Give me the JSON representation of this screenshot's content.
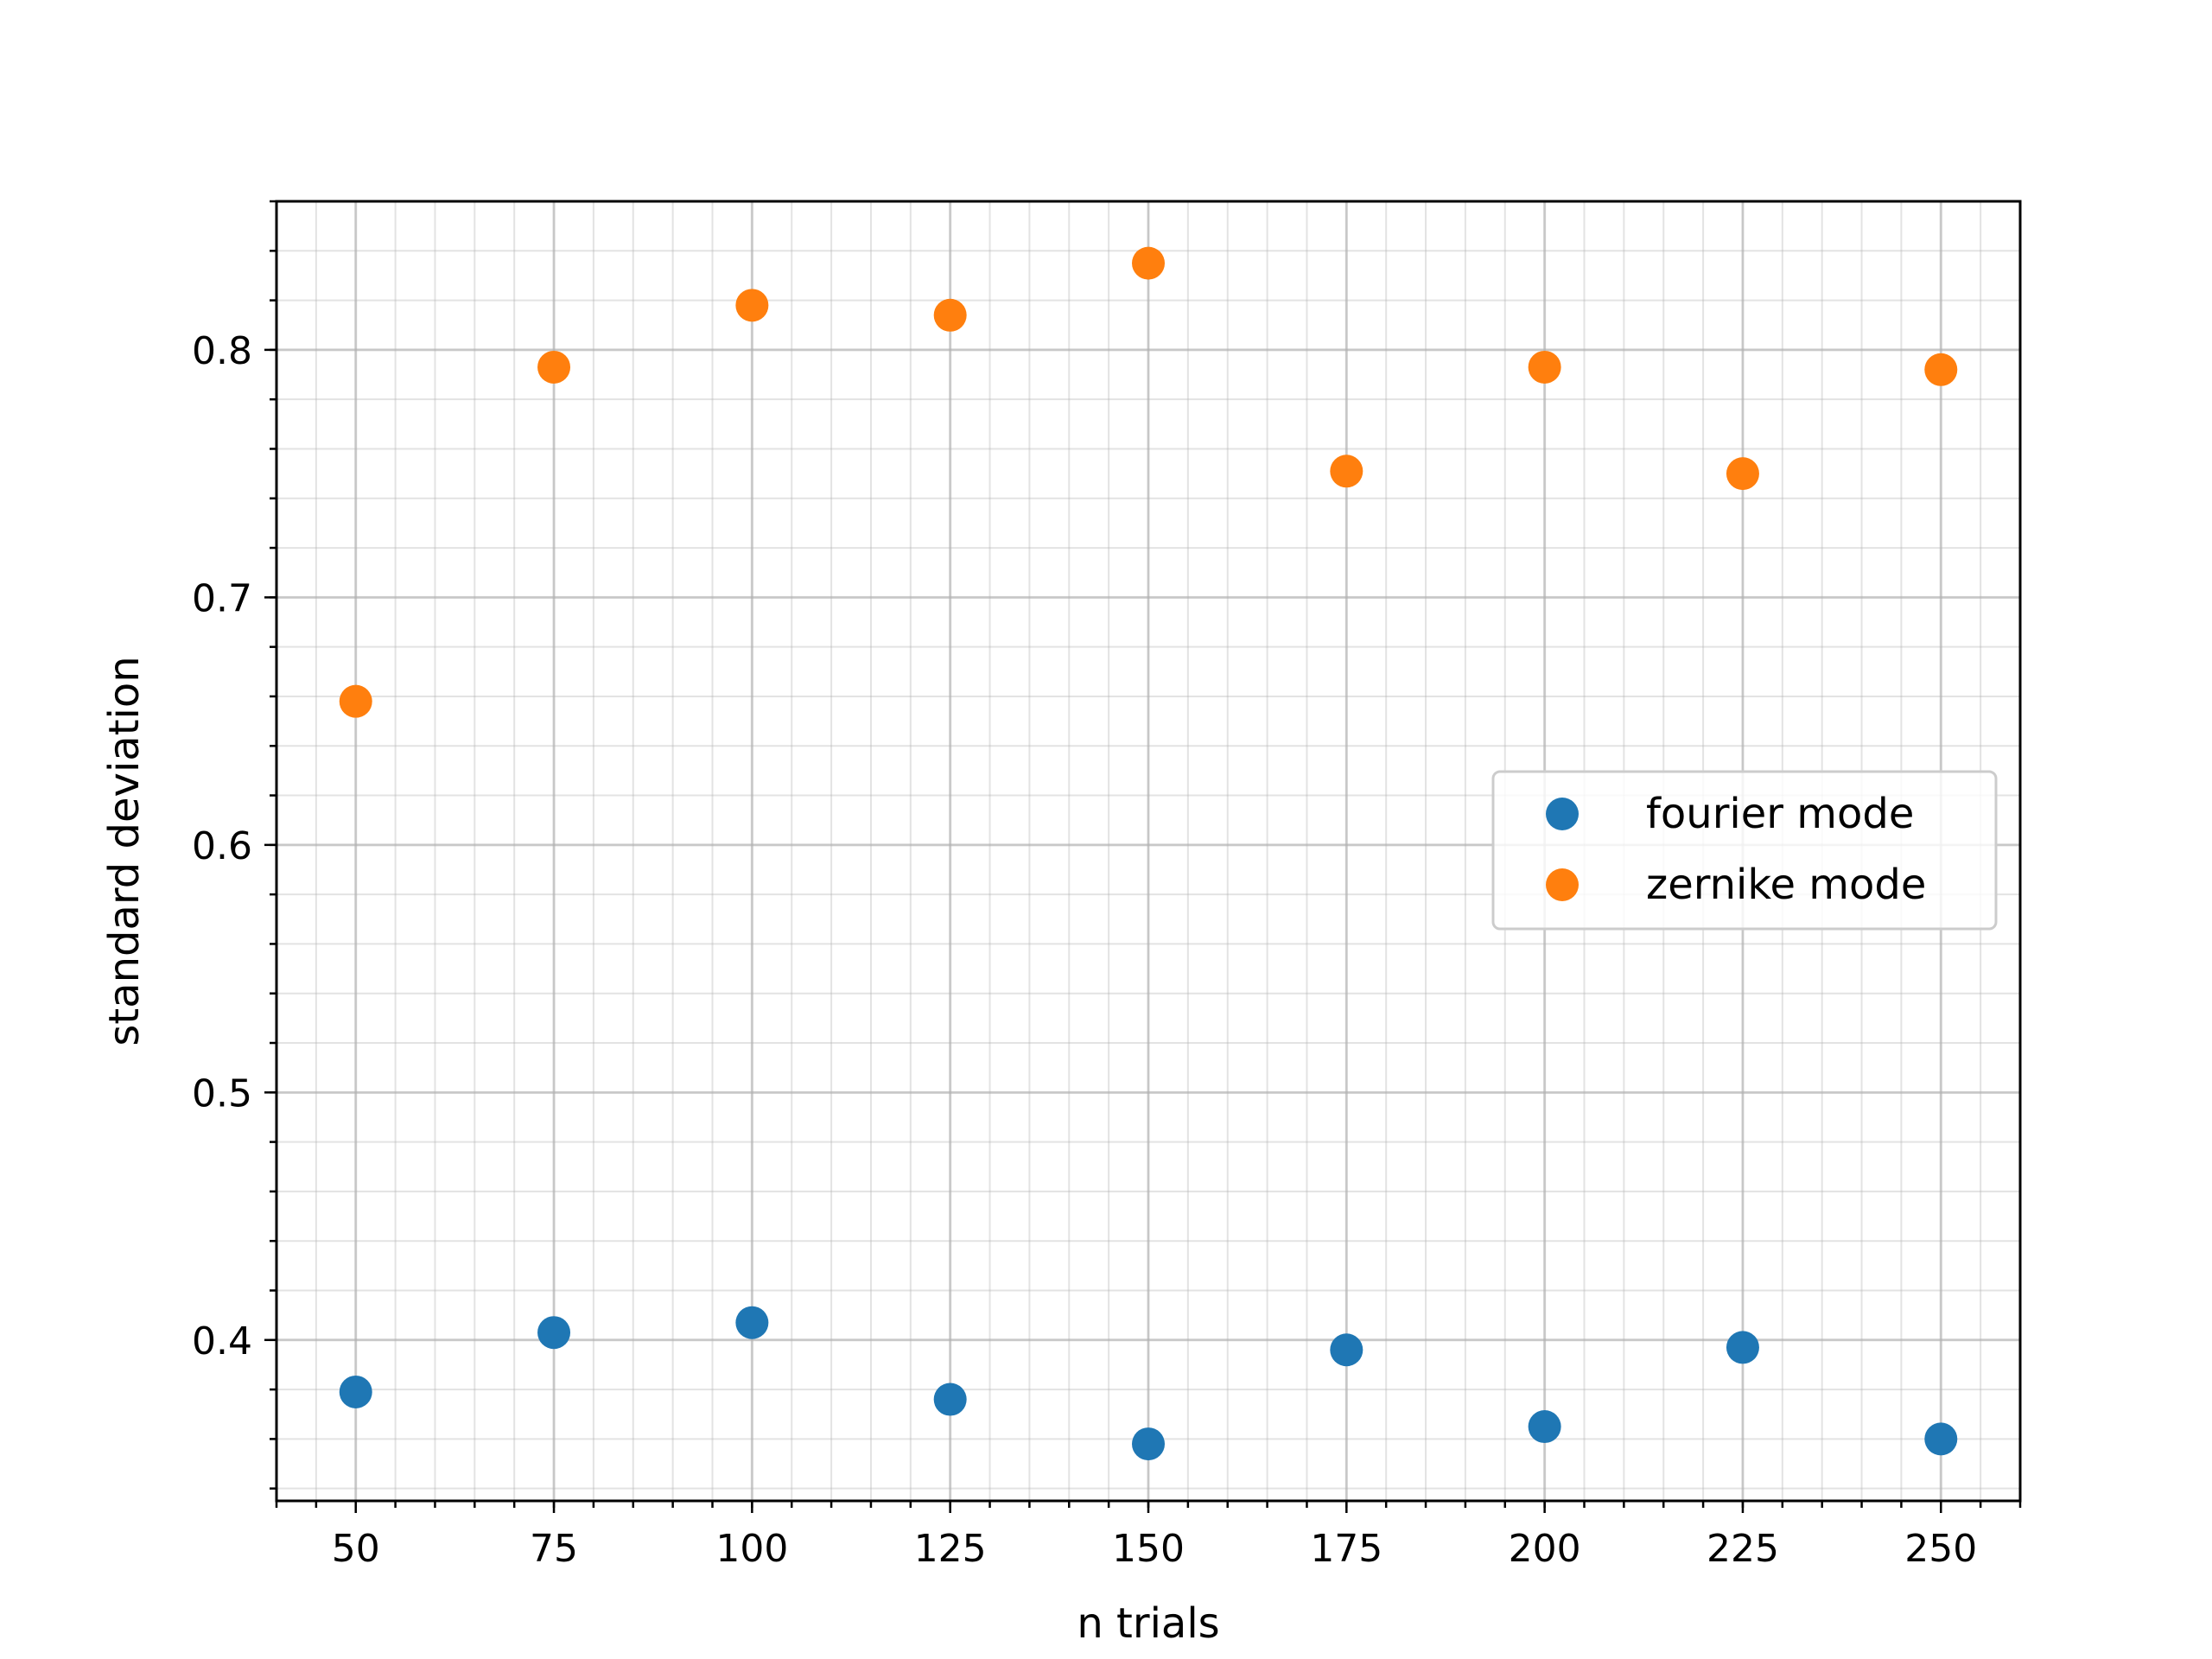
{
  "chart_data": {
    "type": "scatter",
    "title": "",
    "xlabel": "n trials",
    "ylabel": "standard deviation",
    "xlim": [
      40,
      260
    ],
    "ylim": [
      0.335,
      0.86
    ],
    "x_ticks": [
      50,
      75,
      100,
      125,
      150,
      175,
      200,
      225,
      250
    ],
    "y_ticks": [
      0.4,
      0.5,
      0.6,
      0.7,
      0.8
    ],
    "x_minor_step": 5,
    "y_minor_step": 0.02,
    "grid": true,
    "legend_position": "center-right",
    "series": [
      {
        "name": "fourier mode",
        "color": "#1f77b4",
        "x": [
          50,
          75,
          100,
          125,
          150,
          175,
          200,
          225,
          250
        ],
        "y": [
          0.379,
          0.403,
          0.407,
          0.376,
          0.358,
          0.396,
          0.365,
          0.397,
          0.36
        ]
      },
      {
        "name": "zernike mode",
        "color": "#ff7f0e",
        "x": [
          50,
          75,
          100,
          125,
          150,
          175,
          200,
          225,
          250
        ],
        "y": [
          0.658,
          0.793,
          0.818,
          0.814,
          0.835,
          0.751,
          0.793,
          0.75,
          0.792
        ]
      }
    ]
  }
}
